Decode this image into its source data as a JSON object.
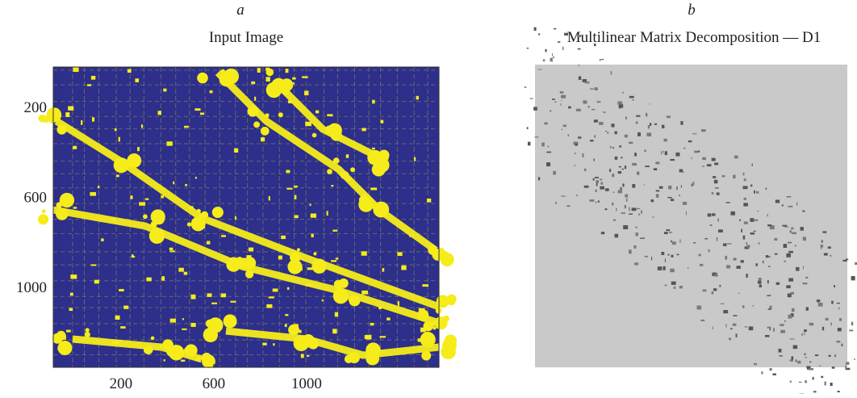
{
  "panels": [
    {
      "label": "a",
      "title": "Input Image",
      "xlim": [
        -92,
        1571
      ],
      "ylim": [
        21,
        1355
      ],
      "xticks": [
        200,
        600,
        1000
      ],
      "yticks": [
        200,
        600,
        1000
      ]
    },
    {
      "label": "b",
      "title": "Multilinear Matrix Decomposition — D1"
    }
  ]
}
